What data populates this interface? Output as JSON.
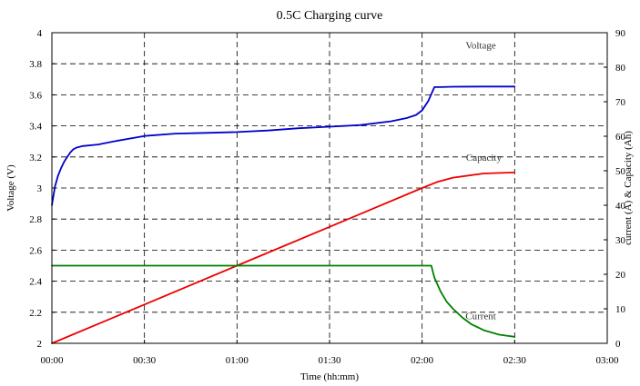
{
  "chart_data": {
    "type": "line",
    "title": "0.5C Charging curve",
    "xlabel": "Time (hh:mm)",
    "ylabel_left": "Voltage (V)",
    "ylabel_right": "current (A) & Capacity (Ah)",
    "x_unit": "minutes",
    "xlim": [
      0,
      180
    ],
    "x_ticks": [
      0,
      30,
      60,
      90,
      120,
      150,
      180
    ],
    "x_tick_labels": [
      "00:00",
      "00:30",
      "01:00",
      "01:30",
      "02:00",
      "02:30",
      "03:00"
    ],
    "ylim_left": [
      2,
      4
    ],
    "y_ticks_left": [
      2,
      2.2,
      2.4,
      2.6,
      2.8,
      3,
      3.2,
      3.4,
      3.6,
      3.8,
      4
    ],
    "y_tick_labels_left": [
      "2",
      "2.2",
      "2.4",
      "2.6",
      "2.8",
      "3",
      "3.2",
      "3.4",
      "3.6",
      "3.8",
      "4"
    ],
    "ylim_right": [
      0,
      90
    ],
    "y_ticks_right": [
      0,
      10,
      20,
      30,
      40,
      50,
      60,
      70,
      80,
      90
    ],
    "y_tick_labels_right": [
      "0",
      "10",
      "20",
      "30",
      "40",
      "50",
      "60",
      "70",
      "80",
      "90"
    ],
    "grid": true,
    "series": [
      {
        "name": "Voltage",
        "axis": "left",
        "color": "#0000cc",
        "x": [
          0,
          1,
          2,
          3,
          4,
          5,
          6,
          7,
          8,
          10,
          15,
          20,
          30,
          40,
          50,
          60,
          70,
          80,
          90,
          100,
          110,
          115,
          118,
          120,
          122,
          124,
          126,
          130,
          140,
          150
        ],
        "y": [
          2.89,
          3.01,
          3.08,
          3.13,
          3.17,
          3.2,
          3.23,
          3.25,
          3.26,
          3.27,
          3.28,
          3.3,
          3.335,
          3.35,
          3.355,
          3.36,
          3.37,
          3.385,
          3.395,
          3.405,
          3.43,
          3.45,
          3.47,
          3.5,
          3.56,
          3.65,
          3.65,
          3.652,
          3.653,
          3.653
        ]
      },
      {
        "name": "Capacity",
        "axis": "right",
        "color": "#ee0000",
        "x": [
          0,
          30,
          60,
          90,
          120,
          125,
          130,
          140,
          150
        ],
        "y": [
          0,
          11.25,
          22.5,
          33.75,
          45,
          46.8,
          48,
          49.2,
          49.5
        ]
      },
      {
        "name": "Current",
        "axis": "right",
        "color": "#008000",
        "x": [
          0,
          30,
          60,
          90,
          123,
          124,
          126,
          128,
          130,
          133,
          136,
          140,
          145,
          150
        ],
        "y": [
          22.5,
          22.5,
          22.5,
          22.5,
          22.5,
          19,
          15,
          12,
          10,
          7.5,
          5.5,
          3.8,
          2.5,
          1.9
        ]
      }
    ],
    "annotations": [
      {
        "text": "Voltage",
        "x": 139,
        "y_axis": "right",
        "y": 86.5
      },
      {
        "text": "Capacity",
        "x": 140,
        "y_axis": "right",
        "y": 54
      },
      {
        "text": "Current",
        "x": 139,
        "y_axis": "right",
        "y": 8
      }
    ]
  }
}
